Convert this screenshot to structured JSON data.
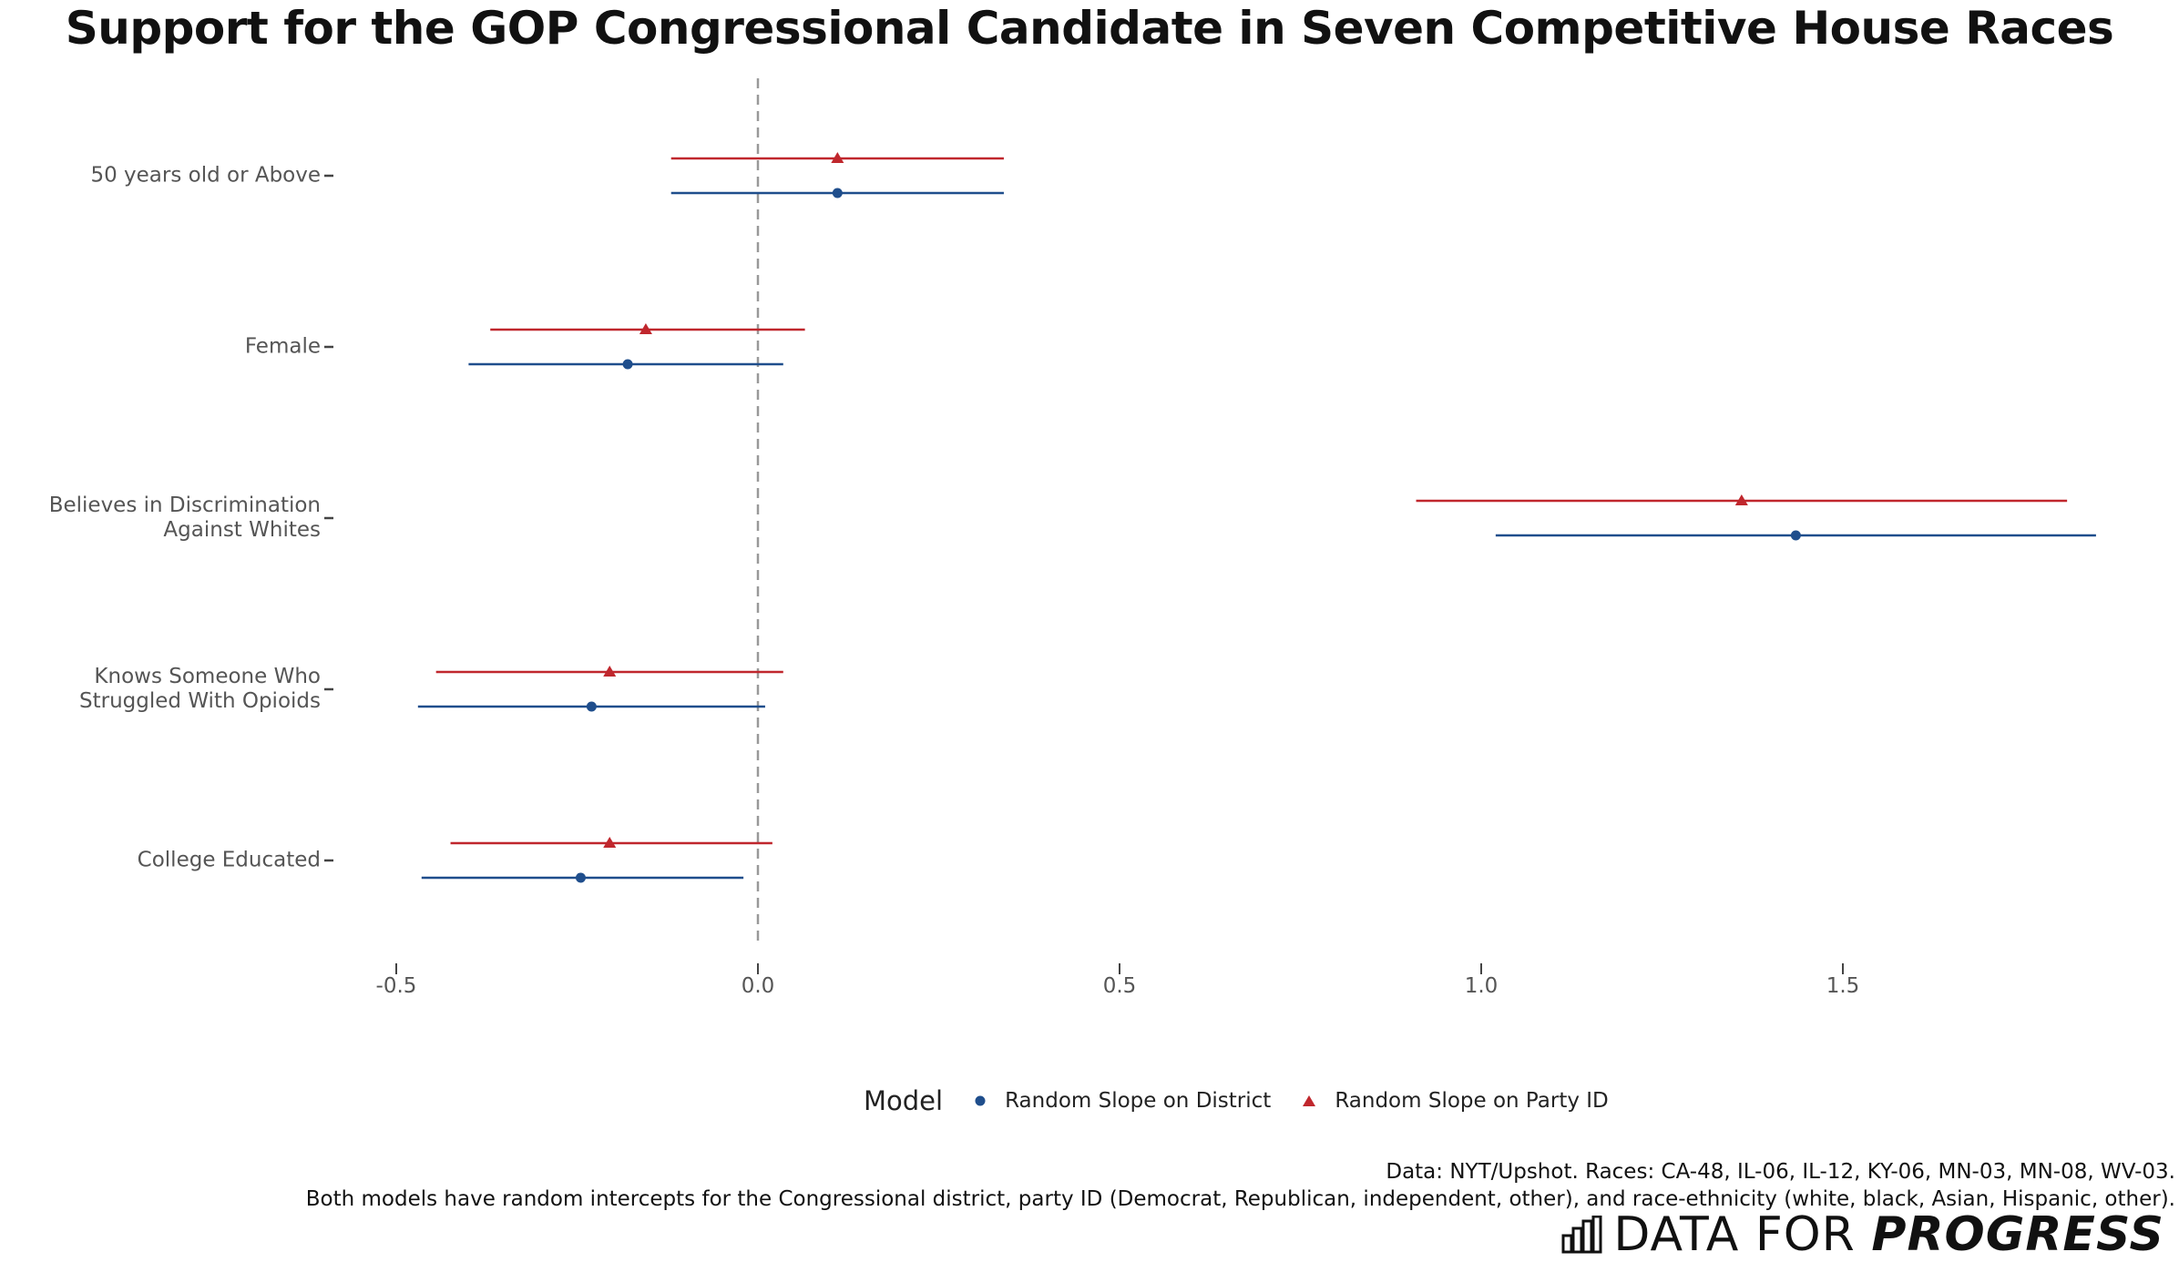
{
  "chart_data": {
    "type": "scatter",
    "title": "Support for the GOP Congressional Candidate in Seven Competitive House Races",
    "xlabel": "",
    "ylabel": "",
    "xlim": [
      -0.5,
      1.9
    ],
    "x_ticks": [
      "-0.5",
      "0.0",
      "0.5",
      "1.0",
      "1.5"
    ],
    "x_tick_values": [
      -0.5,
      0.0,
      0.5,
      1.0,
      1.5
    ],
    "reference_line_x": 0,
    "grid": false,
    "legend_position": "bottom",
    "legend_title": "Model",
    "categories": [
      {
        "id": "age",
        "lines": [
          "50 years old or Above"
        ]
      },
      {
        "id": "female",
        "lines": [
          "Female"
        ]
      },
      {
        "id": "discrimination",
        "lines": [
          "Believes in Discrimination",
          "Against Whites"
        ]
      },
      {
        "id": "opioids",
        "lines": [
          "Knows Someone Who",
          "Struggled With Opioids"
        ]
      },
      {
        "id": "college",
        "lines": [
          "College Educated"
        ]
      }
    ],
    "series": [
      {
        "name": "Random Slope on District",
        "color": "#1f4e8c",
        "marker": "circle",
        "points": [
          {
            "estimate": 0.11,
            "low": -0.12,
            "high": 0.34
          },
          {
            "estimate": -0.18,
            "low": -0.4,
            "high": 0.035
          },
          {
            "estimate": 1.435,
            "low": 1.02,
            "high": 1.85
          },
          {
            "estimate": -0.23,
            "low": -0.47,
            "high": 0.01
          },
          {
            "estimate": -0.245,
            "low": -0.465,
            "high": -0.02
          }
        ]
      },
      {
        "name": "Random Slope on Party ID",
        "color": "#c0272d",
        "marker": "triangle",
        "points": [
          {
            "estimate": 0.11,
            "low": -0.12,
            "high": 0.34
          },
          {
            "estimate": -0.155,
            "low": -0.37,
            "high": 0.065
          },
          {
            "estimate": 1.36,
            "low": 0.91,
            "high": 1.81
          },
          {
            "estimate": -0.205,
            "low": -0.445,
            "high": 0.035
          },
          {
            "estimate": -0.205,
            "low": -0.425,
            "high": 0.02
          }
        ]
      }
    ]
  },
  "caption": {
    "line1": "Data: NYT/Upshot. Races: CA-48, IL-06, IL-12, KY-06, MN-03, MN-08, WV-03.",
    "line2": "Both models have random intercepts for the Congressional district, party ID (Democrat, Republican, independent, other), and race-ethnicity (white, black, Asian, Hispanic, other)."
  },
  "brand": {
    "prefix": "DATA FOR ",
    "emphasis": "PROGRESS",
    "icon": "bar-chart-logo-icon"
  }
}
